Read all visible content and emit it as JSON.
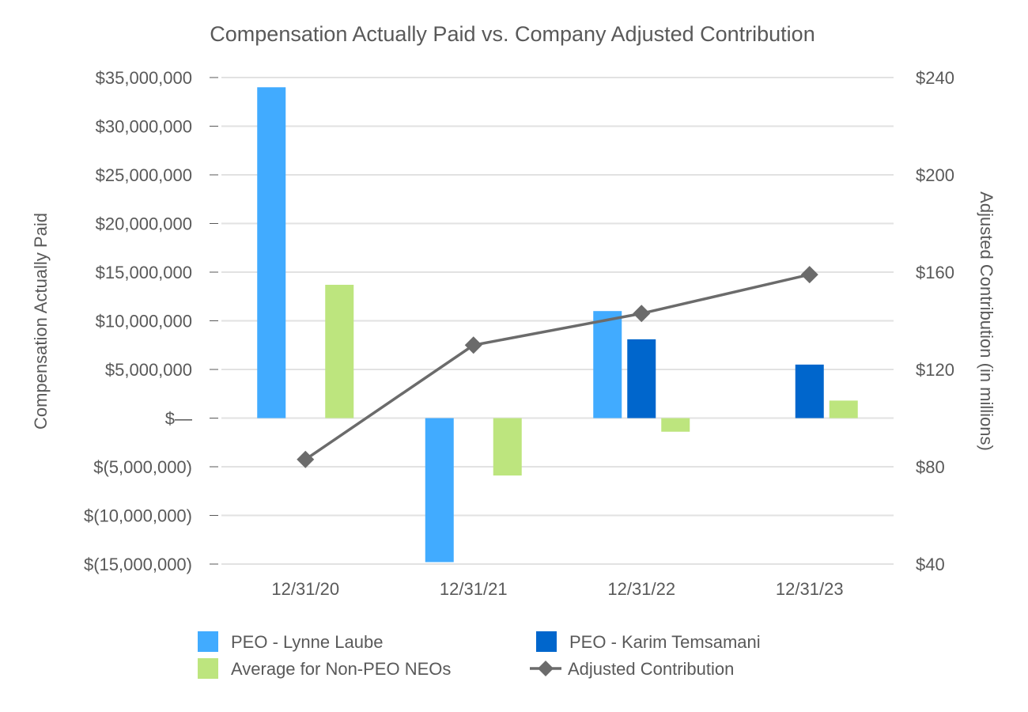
{
  "chart_data": {
    "type": "bar",
    "title": "Compensation Actually Paid vs. Company Adjusted Contribution",
    "categories": [
      "12/31/20",
      "12/31/21",
      "12/31/22",
      "12/31/23"
    ],
    "ylabel": "Compensation Actually Paid",
    "y2label": "Adjusted Contribution (in millions)",
    "ylim": [
      -15000000,
      35000000
    ],
    "y2lim": [
      40,
      240
    ],
    "yticks": [
      35000000,
      30000000,
      25000000,
      20000000,
      15000000,
      10000000,
      5000000,
      0,
      -5000000,
      -10000000,
      -15000000
    ],
    "yticklabels": [
      "$35,000,000",
      "$30,000,000",
      "$25,000,000",
      "$20,000,000",
      "$15,000,000",
      "$10,000,000",
      "$5,000,000",
      "$—",
      "$(5,000,000)",
      "$(10,000,000)",
      "$(15,000,000)"
    ],
    "y2ticks": [
      240,
      200,
      160,
      120,
      80,
      40
    ],
    "y2ticklabels": [
      "$240",
      "$200",
      "$160",
      "$120",
      "$80",
      "$40"
    ],
    "grid": true,
    "legend_position": "bottom",
    "series": [
      {
        "name": "PEO - Lynne Laube",
        "kind": "bar",
        "color": "#41ABFF",
        "values": [
          34000000,
          -14800000,
          11000000,
          null
        ]
      },
      {
        "name": "PEO - Karim Temsamani",
        "kind": "bar",
        "color": "#0066CC",
        "values": [
          null,
          null,
          8100000,
          5500000
        ]
      },
      {
        "name": "Average for Non-PEO NEOs",
        "kind": "bar",
        "color": "#BDE57E",
        "values": [
          13700000,
          -5900000,
          -1400000,
          1800000
        ]
      },
      {
        "name": "Adjusted Contribution",
        "kind": "line",
        "axis": "right",
        "color": "#6B6B6B",
        "values": [
          83,
          130,
          143,
          159
        ]
      }
    ]
  }
}
